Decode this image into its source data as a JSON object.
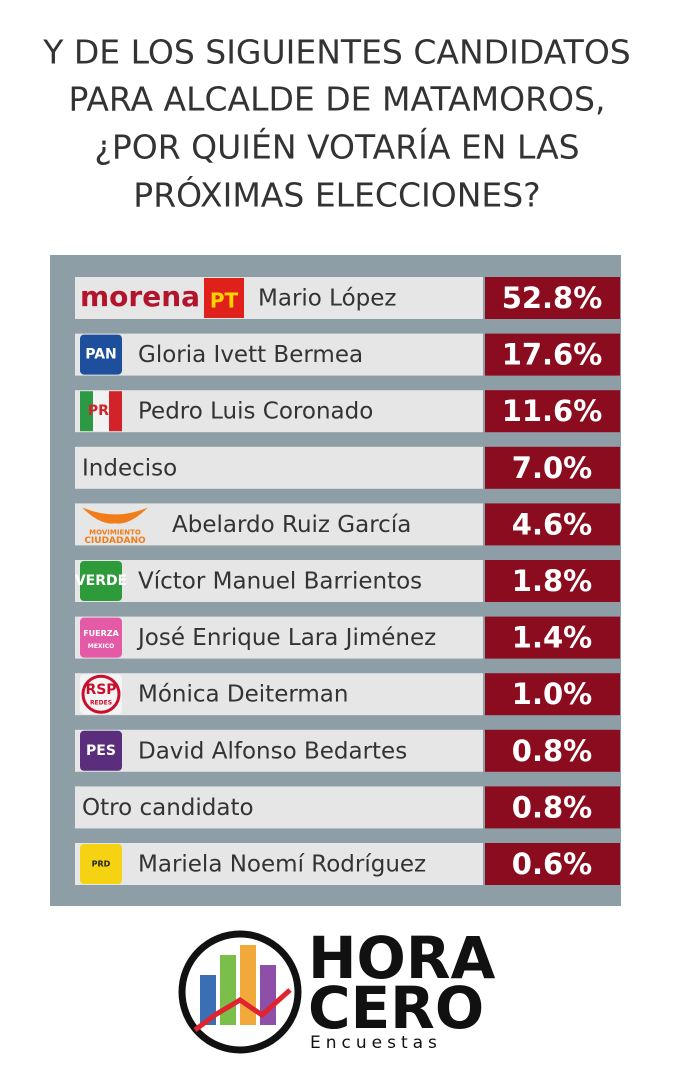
{
  "title": [
    "Y DE LOS SIGUIENTES CANDIDATOS",
    "PARA ALCALDE DE MATAMOROS,",
    "¿POR QUIÉN VOTARÍA EN LAS",
    "PRÓXIMAS ELECCIONES?"
  ],
  "table": {
    "rows": [
      {
        "logo": [
          "morena",
          "PT"
        ],
        "name": "Mario López",
        "value": "52.8%"
      },
      {
        "logo": [
          "PAN"
        ],
        "name": "Gloria Ivett Bermea",
        "value": "17.6%"
      },
      {
        "logo": [
          "PRI"
        ],
        "name": "Pedro Luis Coronado",
        "value": "11.6%"
      },
      {
        "logo": [],
        "name": "Indeciso",
        "value": "7.0%"
      },
      {
        "logo": [
          "MOVIMIENTO",
          "CIUDADANO"
        ],
        "name": "Abelardo Ruiz García",
        "value": "4.6%"
      },
      {
        "logo": [
          "VERDE"
        ],
        "name": "Víctor Manuel Barrientos",
        "value": "1.8%"
      },
      {
        "logo": [
          "FUERZA",
          "MEXICO"
        ],
        "name": "José Enrique Lara Jiménez",
        "value": "1.4%"
      },
      {
        "logo": [
          "RSP",
          "REDES"
        ],
        "name": "Mónica Deiterman",
        "value": "1.0%"
      },
      {
        "logo": [
          "PES"
        ],
        "name": "David Alfonso Bedartes",
        "value": "0.8%"
      },
      {
        "logo": [],
        "name": "Otro candidato",
        "value": "0.8%"
      },
      {
        "logo": [
          "PRD"
        ],
        "name": "Mariela Noemí Rodríguez",
        "value": "0.6%"
      }
    ]
  },
  "footer": {
    "brand": [
      "HORA",
      "CERO"
    ],
    "subtitle": "Encuestas"
  }
}
